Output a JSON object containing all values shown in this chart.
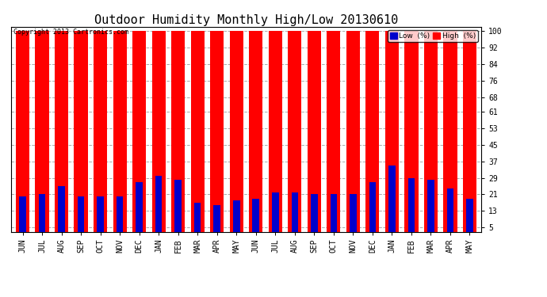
{
  "title": "Outdoor Humidity Monthly High/Low 20130610",
  "copyright": "Copyright 2013 Cartronics.com",
  "background_color": "#ffffff",
  "plot_bg_color": "#ffffff",
  "months": [
    "JUN",
    "JUL",
    "AUG",
    "SEP",
    "OCT",
    "NOV",
    "DEC",
    "JAN",
    "FEB",
    "MAR",
    "APR",
    "MAY",
    "JUN",
    "JUL",
    "AUG",
    "SEP",
    "OCT",
    "NOV",
    "DEC",
    "JAN",
    "FEB",
    "MAR",
    "APR",
    "MAY"
  ],
  "high_values": [
    100,
    100,
    100,
    100,
    100,
    100,
    100,
    100,
    100,
    100,
    100,
    100,
    100,
    100,
    100,
    100,
    100,
    100,
    100,
    100,
    100,
    100,
    100,
    100
  ],
  "low_values": [
    20,
    21,
    25,
    20,
    20,
    20,
    27,
    30,
    28,
    17,
    16,
    18,
    19,
    22,
    22,
    21,
    21,
    21,
    27,
    35,
    29,
    28,
    24,
    19
  ],
  "high_color": "#ff0000",
  "low_color": "#0000cc",
  "yticks": [
    5,
    13,
    21,
    29,
    37,
    45,
    53,
    61,
    68,
    76,
    84,
    92,
    100
  ],
  "ylim": [
    3,
    102
  ],
  "grid_color": "#aaaaaa",
  "legend_low_label": "Low  (%)",
  "legend_high_label": "High  (%)",
  "high_bar_width": 0.7,
  "low_bar_width": 0.35,
  "title_fontsize": 11,
  "tick_fontsize": 7,
  "copyright_fontsize": 6
}
